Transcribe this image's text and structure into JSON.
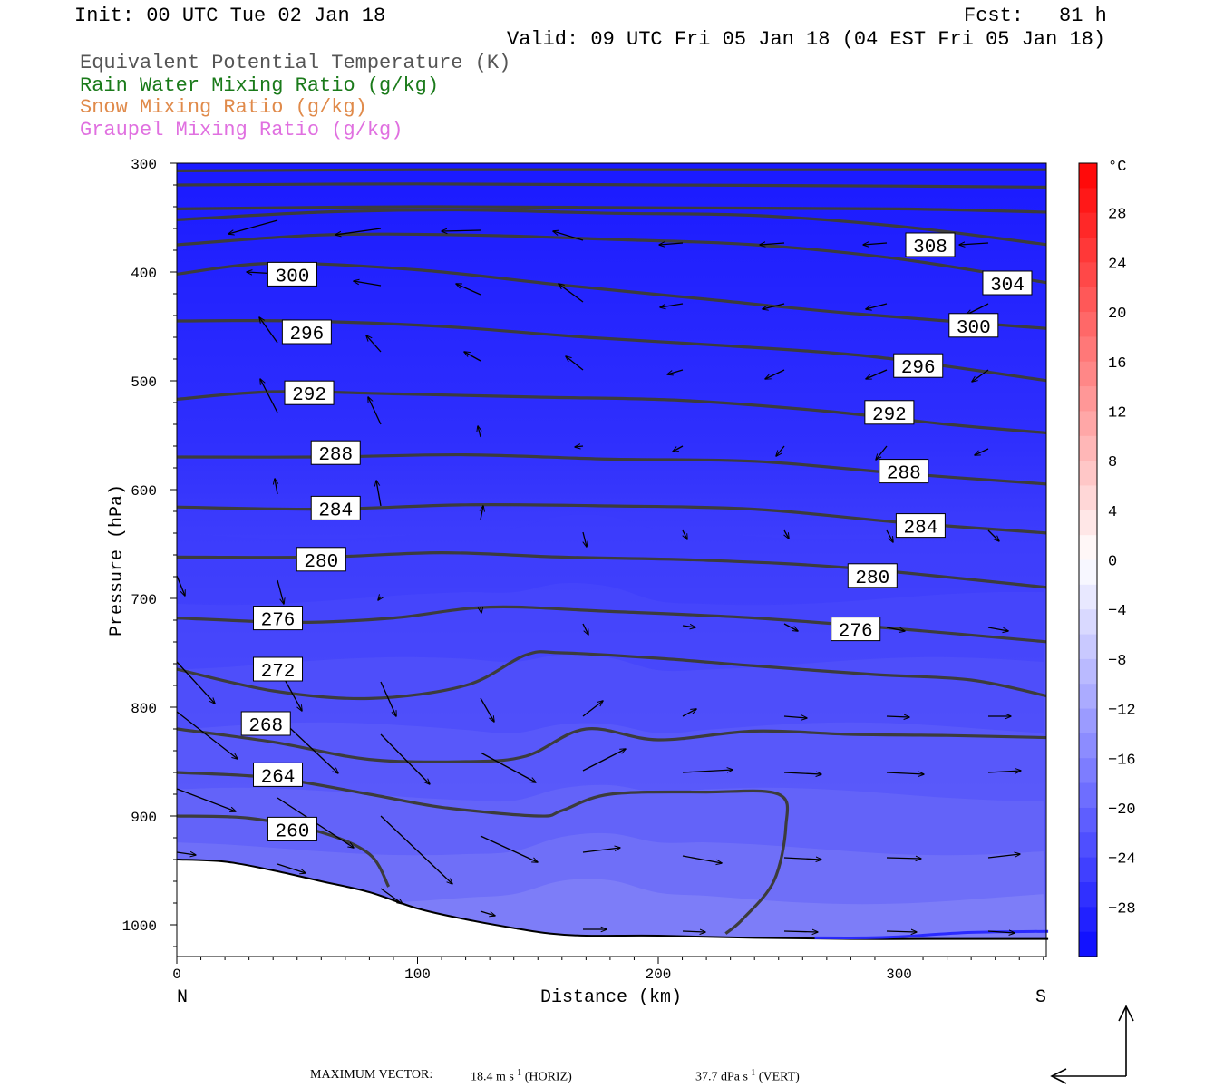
{
  "header": {
    "init": "Init: 00 UTC Tue 02 Jan 18",
    "fcst_label": "Fcst:",
    "fcst_value": "81 h",
    "valid": "Valid: 09 UTC Fri 05 Jan 18 (04 EST Fri 05 Jan 18)"
  },
  "legend": [
    {
      "text": "Equivalent Potential Temperature (K)",
      "color": "#555555"
    },
    {
      "text": "Rain Water Mixing Ratio (g/kg)",
      "color": "#1a7a1a"
    },
    {
      "text": "Snow Mixing Ratio (g/kg)",
      "color": "#e08a4a"
    },
    {
      "text": "Graupel Mixing Ratio (g/kg)",
      "color": "#e070e0"
    }
  ],
  "footer": {
    "max_vector_label": "MAXIMUM VECTOR:",
    "horiz": "18.4 m s",
    "horiz_exp": "-1",
    "horiz_tag": "(HORIZ)",
    "vert": "37.7 dPa s",
    "vert_exp": "-1",
    "vert_tag": "(VERT)"
  },
  "chart_data": {
    "type": "cross-section contour",
    "xlabel": "Distance (km)",
    "ylabel": "Pressure (hPa)",
    "x_range": [
      0,
      362
    ],
    "y_range_hPa": [
      300,
      1030
    ],
    "x_ticks": [
      0,
      100,
      200,
      300
    ],
    "y_ticks": [
      300,
      400,
      500,
      600,
      700,
      800,
      900,
      1000
    ],
    "x_end_labels": {
      "left": "N",
      "right": "S"
    },
    "colorbar": {
      "unit": "°C",
      "range": [
        -32,
        32
      ],
      "tick_labels": [
        "28",
        "24",
        "20",
        "16",
        "12",
        "8",
        "4",
        "0",
        "−4",
        "−8",
        "−12",
        "−16",
        "−20",
        "−24",
        "−28"
      ],
      "tick_values": [
        28,
        24,
        20,
        16,
        12,
        8,
        4,
        0,
        -4,
        -8,
        -12,
        -16,
        -20,
        -24,
        -28
      ]
    },
    "theta_e_contours": [
      {
        "value": 260,
        "label": "260",
        "x": [
          0,
          30,
          60,
          80,
          88
        ],
        "p": [
          900,
          902,
          915,
          935,
          965
        ],
        "label_at": [
          48,
          912
        ]
      },
      {
        "value": 264,
        "label": "264",
        "x": [
          0,
          40,
          80,
          110,
          150,
          160,
          180,
          220,
          250,
          253,
          248,
          235,
          228
        ],
        "p": [
          860,
          865,
          880,
          892,
          900,
          895,
          880,
          878,
          880,
          910,
          960,
          995,
          1008
        ],
        "label_at": [
          42,
          862
        ]
      },
      {
        "value": 268,
        "label": "268",
        "x": [
          0,
          40,
          80,
          120,
          145,
          170,
          200,
          240,
          280,
          320,
          362
        ],
        "p": [
          820,
          832,
          848,
          850,
          845,
          820,
          830,
          822,
          825,
          826,
          828
        ],
        "label_at": [
          37,
          815
        ]
      },
      {
        "value": 272,
        "label": "272",
        "x": [
          0,
          40,
          80,
          120,
          145,
          160,
          200,
          240,
          290,
          330,
          362
        ],
        "p": [
          765,
          785,
          792,
          780,
          752,
          750,
          755,
          762,
          770,
          775,
          790
        ],
        "label_at": [
          42,
          765
        ]
      },
      {
        "value": 276,
        "label": "276",
        "x": [
          0,
          50,
          90,
          130,
          180,
          240,
          300,
          362
        ],
        "p": [
          718,
          722,
          718,
          708,
          712,
          718,
          728,
          740
        ],
        "label_at": [
          42,
          718
        ],
        "label2_at": [
          282,
          728
        ]
      },
      {
        "value": 280,
        "label": "280",
        "x": [
          0,
          60,
          110,
          160,
          220,
          280,
          362
        ],
        "p": [
          662,
          662,
          658,
          662,
          665,
          672,
          690
        ],
        "label_at": [
          60,
          664
        ],
        "label2_at": [
          289,
          679
        ]
      },
      {
        "value": 284,
        "label": "284",
        "x": [
          0,
          60,
          120,
          180,
          240,
          300,
          362
        ],
        "p": [
          616,
          618,
          614,
          615,
          618,
          630,
          640
        ],
        "label_at": [
          66,
          617
        ],
        "label2_at": [
          309,
          633
        ]
      },
      {
        "value": 288,
        "label": "288",
        "x": [
          0,
          60,
          120,
          180,
          240,
          300,
          362
        ],
        "p": [
          570,
          570,
          568,
          572,
          574,
          585,
          595
        ],
        "label_at": [
          66,
          566
        ],
        "label2_at": [
          302,
          583
        ]
      },
      {
        "value": 292,
        "label": "292",
        "x": [
          0,
          40,
          90,
          150,
          210,
          270,
          320,
          362
        ],
        "p": [
          517,
          510,
          512,
          515,
          518,
          528,
          540,
          548
        ],
        "label_at": [
          55,
          511
        ],
        "label2_at": [
          296,
          529
        ]
      },
      {
        "value": 296,
        "label": "296",
        "x": [
          0,
          50,
          110,
          170,
          230,
          290,
          362
        ],
        "p": [
          445,
          445,
          450,
          460,
          468,
          478,
          500
        ],
        "label_at": [
          54,
          455
        ],
        "label2_at": [
          308,
          486
        ]
      },
      {
        "value": 300,
        "label": "300",
        "x": [
          0,
          40,
          100,
          160,
          220,
          280,
          362
        ],
        "p": [
          402,
          392,
          398,
          412,
          425,
          438,
          452
        ],
        "label_at": [
          48,
          402
        ],
        "label2_at": [
          331,
          449
        ]
      },
      {
        "value": 304,
        "label": "304",
        "x": [
          0,
          60,
          120,
          180,
          240,
          300,
          362
        ],
        "p": [
          375,
          366,
          366,
          370,
          375,
          388,
          410
        ],
        "label_at": [
          345,
          410
        ]
      },
      {
        "value": 308,
        "label": "308",
        "x": [
          0,
          60,
          120,
          180,
          240,
          300,
          362
        ],
        "p": [
          352,
          345,
          343,
          346,
          348,
          358,
          375
        ],
        "label_at": [
          313,
          375
        ]
      },
      {
        "value": 312,
        "x": [
          0,
          100,
          200,
          300,
          362
        ],
        "p": [
          342,
          340,
          341,
          342,
          345
        ]
      },
      {
        "value": 316,
        "x": [
          0,
          100,
          200,
          300,
          362
        ],
        "p": [
          320,
          319,
          320,
          321,
          322
        ]
      },
      {
        "value": 320,
        "x": [
          0,
          100,
          200,
          300,
          362
        ],
        "p": [
          307,
          306,
          306,
          306,
          306
        ]
      }
    ],
    "terrain_surface": {
      "x": [
        0,
        20,
        40,
        60,
        80,
        100,
        120,
        140,
        155,
        170,
        200,
        240,
        280,
        320,
        362
      ],
      "p": [
        940,
        942,
        950,
        960,
        970,
        985,
        995,
        1003,
        1008,
        1010,
        1010,
        1012,
        1013,
        1013,
        1013
      ]
    },
    "snow_contour_near_surface": {
      "x": [
        265,
        285,
        300,
        330,
        362
      ],
      "p": [
        1012,
        1012,
        1011,
        1007,
        1006
      ]
    }
  }
}
